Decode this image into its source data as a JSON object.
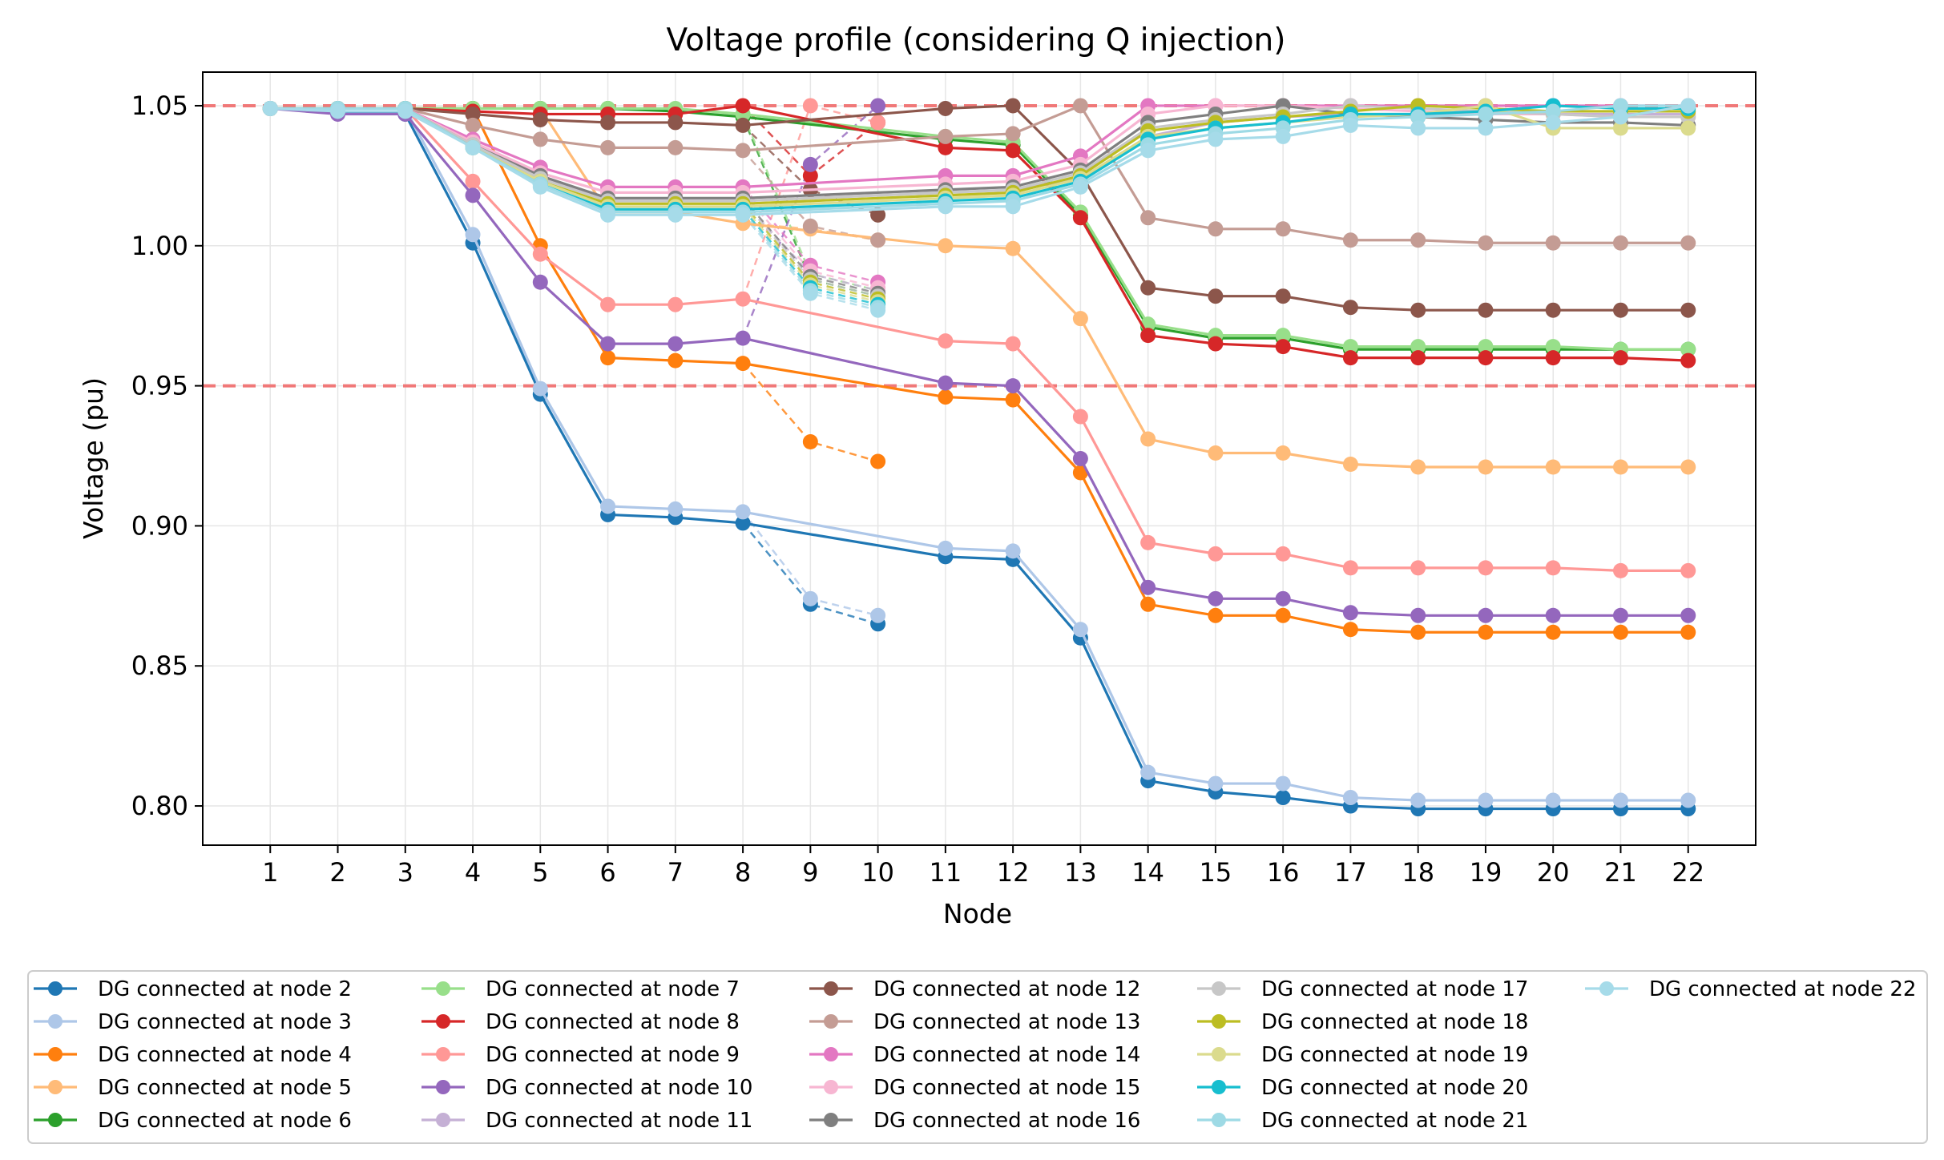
{
  "chart_data": {
    "type": "line",
    "title": "Voltage profile (considering Q injection)",
    "xlabel": "Node",
    "ylabel": "Voltage (pu)",
    "x": [
      1,
      2,
      3,
      4,
      5,
      6,
      7,
      8,
      9,
      10,
      11,
      12,
      13,
      14,
      15,
      16,
      17,
      18,
      19,
      20,
      21,
      22
    ],
    "x_tick_labels": [
      "1",
      "2",
      "3",
      "4",
      "5",
      "6",
      "7",
      "8",
      "9",
      "10",
      "11",
      "12",
      "13",
      "14",
      "15",
      "16",
      "17",
      "18",
      "19",
      "20",
      "21",
      "22"
    ],
    "y_ticks": [
      0.8,
      0.85,
      0.9,
      0.95,
      1.0,
      1.05
    ],
    "y_tick_labels": [
      "0.80",
      "0.85",
      "0.90",
      "0.95",
      "1.00",
      "1.05"
    ],
    "xlim": [
      0,
      23
    ],
    "ylim": [
      0.786,
      1.062
    ],
    "grid": true,
    "reference_lines": [
      1.05,
      0.95
    ],
    "legend_position": "bottom, outside plot, 5 columns",
    "main_path": [
      1,
      2,
      3,
      4,
      5,
      6,
      7,
      8,
      11,
      12,
      13,
      14,
      15,
      16,
      17,
      18,
      19,
      20,
      21,
      22
    ],
    "branch_path": [
      8,
      9,
      10
    ],
    "series": [
      {
        "name": "DG connected at node 2",
        "color": "#1f77b4",
        "values": [
          1.049,
          1.048,
          1.047,
          1.001,
          0.947,
          0.904,
          0.903,
          0.901,
          0.872,
          0.865,
          0.889,
          0.888,
          0.86,
          0.809,
          0.805,
          0.803,
          0.8,
          0.799,
          0.799,
          0.799,
          0.799,
          0.799
        ]
      },
      {
        "name": "DG connected at node 3",
        "color": "#aec7e8",
        "values": [
          1.049,
          1.049,
          1.049,
          1.004,
          0.949,
          0.907,
          0.906,
          0.905,
          0.874,
          0.868,
          0.892,
          0.891,
          0.863,
          0.812,
          0.808,
          0.808,
          0.803,
          0.802,
          0.802,
          0.802,
          0.802,
          0.802
        ]
      },
      {
        "name": "DG connected at node 4",
        "color": "#ff7f0e",
        "values": [
          1.049,
          1.049,
          1.049,
          1.049,
          1.0,
          0.96,
          0.959,
          0.958,
          0.93,
          0.923,
          0.946,
          0.945,
          0.919,
          0.872,
          0.868,
          0.868,
          0.863,
          0.862,
          0.862,
          0.862,
          0.862,
          0.862
        ]
      },
      {
        "name": "DG connected at node 5",
        "color": "#ffbb78",
        "values": [
          1.049,
          1.049,
          1.049,
          1.049,
          1.049,
          1.012,
          1.012,
          1.008,
          1.006,
          1.002,
          1.0,
          0.999,
          0.974,
          0.931,
          0.926,
          0.926,
          0.922,
          0.921,
          0.921,
          0.921,
          0.921,
          0.921
        ]
      },
      {
        "name": "DG connected at node 6",
        "color": "#2ca02c",
        "values": [
          1.049,
          1.049,
          1.049,
          1.049,
          1.049,
          1.049,
          1.048,
          1.046,
          0.988,
          0.982,
          1.038,
          1.036,
          1.011,
          0.971,
          0.967,
          0.967,
          0.963,
          0.963,
          0.963,
          0.963,
          0.963,
          0.963
        ]
      },
      {
        "name": "DG connected at node 7",
        "color": "#98df8a",
        "values": [
          1.049,
          1.049,
          1.049,
          1.049,
          1.049,
          1.049,
          1.049,
          1.047,
          0.99,
          0.984,
          1.039,
          1.037,
          1.012,
          0.972,
          0.968,
          0.968,
          0.964,
          0.964,
          0.964,
          0.964,
          0.963,
          0.963
        ]
      },
      {
        "name": "DG connected at node 8",
        "color": "#d62728",
        "values": [
          1.049,
          1.049,
          1.049,
          1.048,
          1.047,
          1.047,
          1.047,
          1.05,
          1.025,
          1.044,
          1.035,
          1.034,
          1.01,
          0.968,
          0.965,
          0.964,
          0.96,
          0.96,
          0.96,
          0.96,
          0.96,
          0.959
        ]
      },
      {
        "name": "DG connected at node 9",
        "color": "#ff9896",
        "values": [
          1.049,
          1.049,
          1.049,
          1.023,
          0.997,
          0.979,
          0.979,
          0.981,
          1.05,
          1.044,
          0.966,
          0.965,
          0.939,
          0.894,
          0.89,
          0.89,
          0.885,
          0.885,
          0.885,
          0.885,
          0.884,
          0.884
        ]
      },
      {
        "name": "DG connected at node 10",
        "color": "#9467bd",
        "values": [
          1.049,
          1.047,
          1.047,
          1.018,
          0.987,
          0.965,
          0.965,
          0.967,
          1.029,
          1.05,
          0.951,
          0.95,
          0.924,
          0.878,
          0.874,
          0.874,
          0.869,
          0.868,
          0.868,
          0.868,
          0.868,
          0.868
        ]
      },
      {
        "name": "DG connected at node 11",
        "color": "#c5b0d5",
        "values": [
          1.049,
          1.049,
          1.049,
          1.037,
          1.025,
          1.016,
          1.016,
          1.016,
          0.99,
          0.984,
          1.019,
          1.02,
          1.024,
          1.039,
          1.044,
          1.046,
          1.047,
          1.047,
          1.047,
          1.047,
          1.047,
          1.047
        ]
      },
      {
        "name": "DG connected at node 12",
        "color": "#8c564b",
        "values": [
          1.049,
          1.049,
          1.049,
          1.047,
          1.045,
          1.044,
          1.044,
          1.043,
          1.02,
          1.011,
          1.049,
          1.05,
          1.026,
          0.985,
          0.982,
          0.982,
          0.978,
          0.977,
          0.977,
          0.977,
          0.977,
          0.977
        ]
      },
      {
        "name": "DG connected at node 13",
        "color": "#c49c94",
        "values": [
          1.049,
          1.049,
          1.049,
          1.043,
          1.038,
          1.035,
          1.035,
          1.034,
          1.007,
          1.002,
          1.039,
          1.04,
          1.05,
          1.01,
          1.006,
          1.006,
          1.002,
          1.002,
          1.001,
          1.001,
          1.001,
          1.001
        ]
      },
      {
        "name": "DG connected at node 14",
        "color": "#e377c2",
        "values": [
          1.049,
          1.049,
          1.049,
          1.038,
          1.028,
          1.021,
          1.021,
          1.021,
          0.993,
          0.987,
          1.025,
          1.025,
          1.032,
          1.05,
          1.05,
          1.05,
          1.05,
          1.05,
          1.05,
          1.05,
          1.05,
          1.05
        ]
      },
      {
        "name": "DG connected at node 15",
        "color": "#f7b6d2",
        "values": [
          1.049,
          1.049,
          1.049,
          1.037,
          1.026,
          1.019,
          1.019,
          1.019,
          0.991,
          0.985,
          1.022,
          1.023,
          1.029,
          1.047,
          1.05,
          1.05,
          1.049,
          1.048,
          1.047,
          1.047,
          1.046,
          1.046
        ]
      },
      {
        "name": "DG connected at node 16",
        "color": "#7f7f7f",
        "values": [
          1.049,
          1.049,
          1.049,
          1.036,
          1.025,
          1.017,
          1.017,
          1.017,
          0.989,
          0.983,
          1.02,
          1.021,
          1.027,
          1.044,
          1.047,
          1.05,
          1.047,
          1.046,
          1.045,
          1.044,
          1.044,
          1.043
        ]
      },
      {
        "name": "DG connected at node 17",
        "color": "#c7c7c7",
        "values": [
          1.049,
          1.049,
          1.049,
          1.036,
          1.024,
          1.016,
          1.016,
          1.016,
          0.988,
          0.982,
          1.019,
          1.02,
          1.026,
          1.042,
          1.045,
          1.047,
          1.05,
          1.049,
          1.048,
          1.047,
          1.046,
          1.046
        ]
      },
      {
        "name": "DG connected at node 18",
        "color": "#bcbd22",
        "values": [
          1.049,
          1.049,
          1.049,
          1.035,
          1.023,
          1.015,
          1.015,
          1.015,
          0.987,
          0.981,
          1.018,
          1.019,
          1.025,
          1.041,
          1.044,
          1.046,
          1.048,
          1.05,
          1.049,
          1.048,
          1.048,
          1.048
        ]
      },
      {
        "name": "DG connected at node 19",
        "color": "#dbdb8d",
        "values": [
          1.049,
          1.049,
          1.049,
          1.035,
          1.023,
          1.014,
          1.014,
          1.014,
          0.986,
          0.98,
          1.017,
          1.018,
          1.024,
          1.039,
          1.042,
          1.044,
          1.046,
          1.047,
          1.05,
          1.042,
          1.042,
          1.042
        ]
      },
      {
        "name": "DG connected at node 20",
        "color": "#17becf",
        "values": [
          1.049,
          1.049,
          1.049,
          1.035,
          1.022,
          1.013,
          1.013,
          1.013,
          0.985,
          0.979,
          1.016,
          1.017,
          1.023,
          1.038,
          1.042,
          1.044,
          1.047,
          1.047,
          1.048,
          1.05,
          1.049,
          1.049
        ]
      },
      {
        "name": "DG connected at node 21",
        "color": "#9edae5",
        "values": [
          1.049,
          1.049,
          1.049,
          1.035,
          1.022,
          1.012,
          1.012,
          1.012,
          0.984,
          0.978,
          1.015,
          1.016,
          1.022,
          1.036,
          1.04,
          1.042,
          1.045,
          1.046,
          1.047,
          1.048,
          1.05,
          1.05
        ]
      },
      {
        "name": "DG connected at node 22",
        "color": "#a6dbe9",
        "values": [
          1.049,
          1.048,
          1.048,
          1.035,
          1.021,
          1.011,
          1.011,
          1.011,
          0.983,
          0.977,
          1.014,
          1.014,
          1.021,
          1.034,
          1.038,
          1.039,
          1.043,
          1.042,
          1.042,
          1.044,
          1.046,
          1.05
        ]
      }
    ]
  }
}
